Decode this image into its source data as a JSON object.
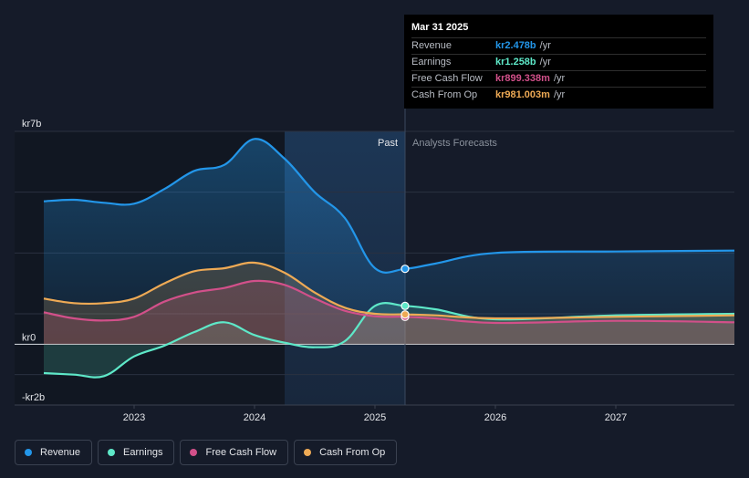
{
  "chart_data": {
    "type": "line",
    "currency_prefix": "kr",
    "y_axis": {
      "min": -2,
      "max": 7,
      "unit": "b",
      "tick_labels": [
        {
          "value": 7,
          "label": "kr7b"
        },
        {
          "value": 0,
          "label": "kr0"
        },
        {
          "value": -2,
          "label": "-kr2b"
        }
      ]
    },
    "x_axis": {
      "min": 2022.25,
      "max": 2028.0,
      "ticks": [
        {
          "value": 2023,
          "label": "2023"
        },
        {
          "value": 2024,
          "label": "2024"
        },
        {
          "value": 2025,
          "label": "2025"
        },
        {
          "value": 2026,
          "label": "2026"
        },
        {
          "value": 2027,
          "label": "2027"
        }
      ]
    },
    "past_label": "Past",
    "forecast_label": "Analysts Forecasts",
    "past_end": 2025.25,
    "highlight_start": 2024.25,
    "series": [
      {
        "name": "Revenue",
        "color": "#2396e9",
        "fill": true,
        "points": [
          [
            2022.25,
            4.7
          ],
          [
            2022.5,
            4.75
          ],
          [
            2022.75,
            4.65
          ],
          [
            2023.0,
            4.62
          ],
          [
            2023.25,
            5.1
          ],
          [
            2023.5,
            5.7
          ],
          [
            2023.75,
            5.9
          ],
          [
            2024.0,
            6.75
          ],
          [
            2024.25,
            6.1
          ],
          [
            2024.5,
            5.0
          ],
          [
            2024.75,
            4.15
          ],
          [
            2025.0,
            2.5
          ],
          [
            2025.25,
            2.48
          ],
          [
            2025.5,
            2.65
          ],
          [
            2026.0,
            3.0
          ],
          [
            2027.0,
            3.05
          ],
          [
            2028.0,
            3.08
          ]
        ]
      },
      {
        "name": "Earnings",
        "color": "#5ee8c8",
        "fill": true,
        "points": [
          [
            2022.25,
            -0.95
          ],
          [
            2022.5,
            -1.0
          ],
          [
            2022.75,
            -1.05
          ],
          [
            2023.0,
            -0.4
          ],
          [
            2023.25,
            -0.05
          ],
          [
            2023.5,
            0.4
          ],
          [
            2023.75,
            0.72
          ],
          [
            2024.0,
            0.3
          ],
          [
            2024.25,
            0.05
          ],
          [
            2024.5,
            -0.1
          ],
          [
            2024.75,
            0.1
          ],
          [
            2025.0,
            1.26
          ],
          [
            2025.25,
            1.26
          ],
          [
            2025.5,
            1.15
          ],
          [
            2026.0,
            0.82
          ],
          [
            2027.0,
            0.95
          ],
          [
            2028.0,
            1.0
          ]
        ]
      },
      {
        "name": "Free Cash Flow",
        "color": "#d2508a",
        "fill": true,
        "points": [
          [
            2022.25,
            1.05
          ],
          [
            2022.5,
            0.85
          ],
          [
            2022.75,
            0.78
          ],
          [
            2023.0,
            0.9
          ],
          [
            2023.25,
            1.4
          ],
          [
            2023.5,
            1.7
          ],
          [
            2023.75,
            1.85
          ],
          [
            2024.0,
            2.08
          ],
          [
            2024.25,
            1.95
          ],
          [
            2024.5,
            1.5
          ],
          [
            2024.75,
            1.1
          ],
          [
            2025.0,
            0.92
          ],
          [
            2025.25,
            0.9
          ],
          [
            2025.5,
            0.85
          ],
          [
            2026.0,
            0.7
          ],
          [
            2027.0,
            0.77
          ],
          [
            2028.0,
            0.72
          ]
        ]
      },
      {
        "name": "Cash From Op",
        "color": "#eeaa55",
        "fill": true,
        "points": [
          [
            2022.25,
            1.5
          ],
          [
            2022.5,
            1.35
          ],
          [
            2022.75,
            1.35
          ],
          [
            2023.0,
            1.5
          ],
          [
            2023.25,
            2.0
          ],
          [
            2023.5,
            2.4
          ],
          [
            2023.75,
            2.5
          ],
          [
            2024.0,
            2.68
          ],
          [
            2024.25,
            2.35
          ],
          [
            2024.5,
            1.7
          ],
          [
            2024.75,
            1.2
          ],
          [
            2025.0,
            1.0
          ],
          [
            2025.25,
            0.98
          ],
          [
            2025.5,
            0.95
          ],
          [
            2026.0,
            0.85
          ],
          [
            2027.0,
            0.9
          ],
          [
            2028.0,
            0.95
          ]
        ]
      }
    ]
  },
  "tooltip": {
    "date": "Mar 31 2025",
    "rows": [
      {
        "label": "Revenue",
        "value": "kr2.478b",
        "unit": "/yr",
        "color": "#2396e9"
      },
      {
        "label": "Earnings",
        "value": "kr1.258b",
        "unit": "/yr",
        "color": "#5ee8c8"
      },
      {
        "label": "Free Cash Flow",
        "value": "kr899.338m",
        "unit": "/yr",
        "color": "#d2508a"
      },
      {
        "label": "Cash From Op",
        "value": "kr981.003m",
        "unit": "/yr",
        "color": "#eeaa55"
      }
    ]
  },
  "legend": {
    "items": [
      {
        "label": "Revenue",
        "color": "#2396e9"
      },
      {
        "label": "Earnings",
        "color": "#5ee8c8"
      },
      {
        "label": "Free Cash Flow",
        "color": "#d2508a"
      },
      {
        "label": "Cash From Op",
        "color": "#eeaa55"
      }
    ]
  }
}
